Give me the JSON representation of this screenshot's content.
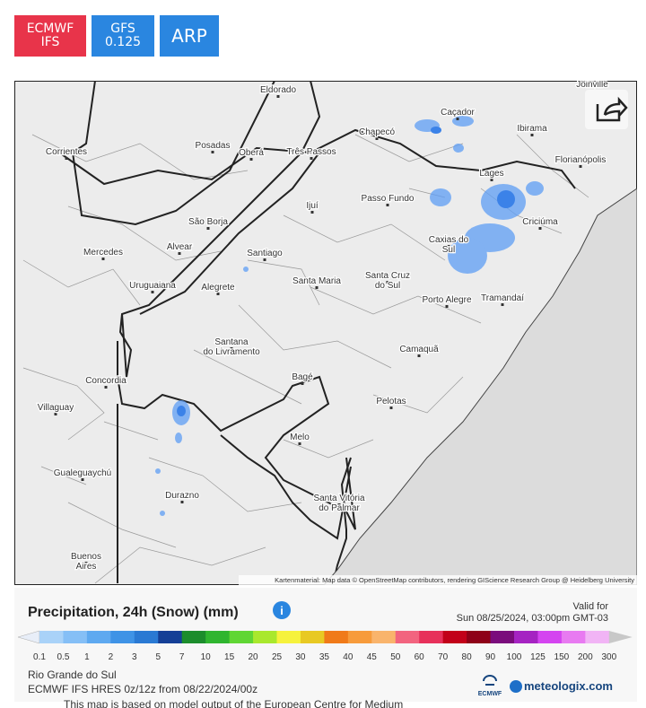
{
  "buttons": [
    {
      "lines": [
        "ECMWF",
        "IFS"
      ]
    },
    {
      "lines": [
        "GFS",
        "0.125"
      ]
    },
    {
      "lines": [
        "ARP"
      ]
    }
  ],
  "map": {
    "cities": [
      {
        "lines": [
          "Eldorado"
        ]
      },
      {
        "lines": [
          "Joinville"
        ]
      },
      {
        "lines": [
          "Caçador"
        ]
      },
      {
        "lines": [
          "Chapecó"
        ]
      },
      {
        "lines": [
          "Ibirama"
        ]
      },
      {
        "lines": [
          "Florianópolis"
        ]
      },
      {
        "lines": [
          "Corrientes"
        ]
      },
      {
        "lines": [
          "Posadas"
        ]
      },
      {
        "lines": [
          "Oberá"
        ]
      },
      {
        "lines": [
          "Três Passos"
        ]
      },
      {
        "lines": [
          "Lages"
        ]
      },
      {
        "lines": [
          "Passo Fundo"
        ]
      },
      {
        "lines": [
          "Ijuí"
        ]
      },
      {
        "lines": [
          "São Borja"
        ]
      },
      {
        "lines": [
          "Criciúma"
        ]
      },
      {
        "lines": [
          "Caxias do",
          "Sul"
        ]
      },
      {
        "lines": [
          "Alvear"
        ]
      },
      {
        "lines": [
          "Mercedes"
        ]
      },
      {
        "lines": [
          "Santiago"
        ]
      },
      {
        "lines": [
          "Uruguaiana"
        ]
      },
      {
        "lines": [
          "Alegrete"
        ]
      },
      {
        "lines": [
          "Santa Maria"
        ]
      },
      {
        "lines": [
          "Santa Cruz",
          "do Sul"
        ]
      },
      {
        "lines": [
          "Porto Alegre"
        ]
      },
      {
        "lines": [
          "Tramandaí"
        ]
      },
      {
        "lines": [
          "Santana",
          "do Livramento"
        ]
      },
      {
        "lines": [
          "Camaquã"
        ]
      },
      {
        "lines": [
          "Concordia"
        ]
      },
      {
        "lines": [
          "Bagé"
        ]
      },
      {
        "lines": [
          "Villaguay"
        ]
      },
      {
        "lines": [
          "Pelotas"
        ]
      },
      {
        "lines": [
          "Melo"
        ]
      },
      {
        "lines": [
          "Gualeguaychú"
        ]
      },
      {
        "lines": [
          "Durazno"
        ]
      },
      {
        "lines": [
          "Santa Vitória",
          "do Palmar"
        ]
      },
      {
        "lines": [
          "Buenos",
          "Aires"
        ]
      }
    ],
    "attribution": "Kartenmaterial: Map data © OpenStreetMap contributors, rendering GIScience Research Group @ Heidelberg University"
  },
  "legend": {
    "title": "Precipitation, 24h (Snow) (mm)",
    "valid_label": "Valid for",
    "valid_time": "Sun 08/25/2024, 03:00pm GMT-03",
    "scale_labels": [
      "0.1",
      "0.5",
      "1",
      "2",
      "3",
      "5",
      "7",
      "10",
      "15",
      "20",
      "25",
      "30",
      "35",
      "40",
      "45",
      "50",
      "60",
      "70",
      "80",
      "90",
      "100",
      "125",
      "150",
      "200",
      "300"
    ],
    "colors": [
      "#a9d2f8",
      "#85bff6",
      "#5ea9f0",
      "#3f93e6",
      "#2a79d3",
      "#143f96",
      "#1c8d2c",
      "#2fb52f",
      "#60d634",
      "#a9e82d",
      "#f6f23c",
      "#e8c923",
      "#f07a19",
      "#f79b3b",
      "#f9b46c",
      "#f2647f",
      "#e7305a",
      "#c20019",
      "#8e0017",
      "#7a0c7c",
      "#a523c2",
      "#d444f0",
      "#e87af1",
      "#f1b4f5"
    ]
  },
  "footer": {
    "region": "Rio Grande do Sul",
    "model_run": "ECMWF IFS HRES 0z/12z from 08/22/2024/00z",
    "ecmwf_logo": "ECMWF",
    "site": "meteologix.com",
    "note": "This map is based on model output of the European Centre for Medium"
  }
}
